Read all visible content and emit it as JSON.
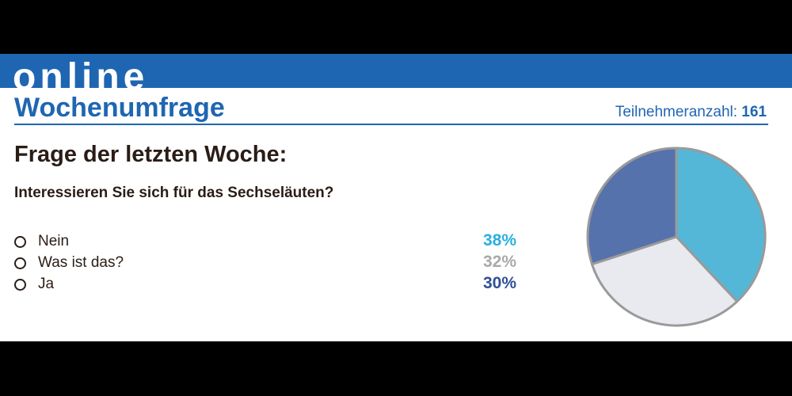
{
  "banner": {
    "word": "online"
  },
  "header": {
    "title": "Wochenumfrage",
    "participants_label": "Teilnehmeranzahl:",
    "participants_count": "161"
  },
  "poll": {
    "heading": "Frage der letzten Woche:",
    "question": "Interessieren Sie sich für das Sechseläuten?"
  },
  "colors": {
    "brand_blue": "#1f66b2",
    "slice_nein": "#54b7d7",
    "slice_was": "#e9e9f0",
    "slice_ja": "#5672ad",
    "pct_nein": "#2ab0dd",
    "pct_was": "#a9a9a9",
    "pct_ja": "#2e4f97"
  },
  "chart_data": {
    "type": "pie",
    "title": "",
    "categories": [
      "Nein",
      "Was ist das?",
      "Ja"
    ],
    "values": [
      38,
      32,
      30
    ],
    "value_labels": [
      "38%",
      "32%",
      "30%"
    ],
    "unit": "%",
    "legend": "left"
  }
}
